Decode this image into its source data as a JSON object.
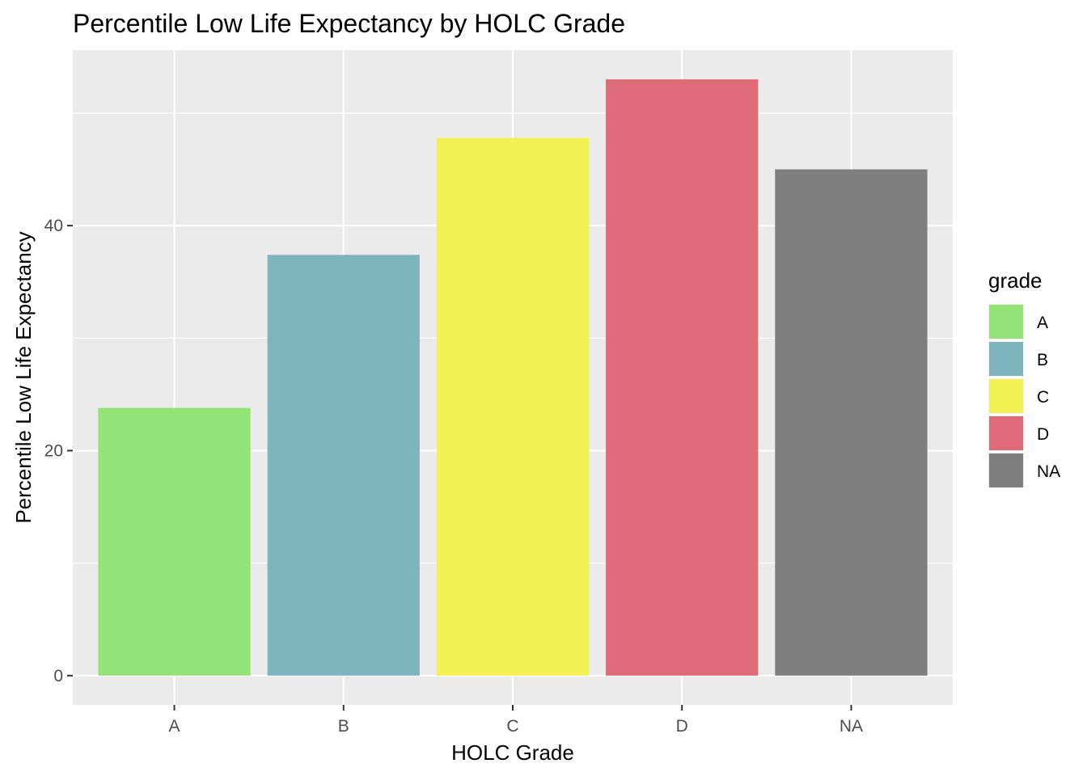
{
  "chart_data": {
    "type": "bar",
    "title": "Percentile Low Life Expectancy by HOLC Grade",
    "xlabel": "HOLC Grade",
    "ylabel": "Percentile Low Life Expectancy",
    "categories": [
      "A",
      "B",
      "C",
      "D",
      "NA"
    ],
    "values": [
      23.8,
      37.4,
      47.8,
      53.0,
      45.0
    ],
    "colors": [
      "#94e376",
      "#7eb4bd",
      "#f2f053",
      "#de6b77",
      "#7f7f7f"
    ],
    "ylim": [
      -2.6,
      55.6
    ],
    "yticks": [
      0,
      20,
      40
    ],
    "yticks_labels": [
      "0",
      "20",
      "40"
    ],
    "y_minor_ticks": [
      10,
      30,
      50
    ],
    "grid": true,
    "background": "#ebebeb",
    "legend": {
      "title": "grade",
      "position": "right",
      "entries": [
        "A",
        "B",
        "C",
        "D",
        "NA"
      ]
    }
  }
}
